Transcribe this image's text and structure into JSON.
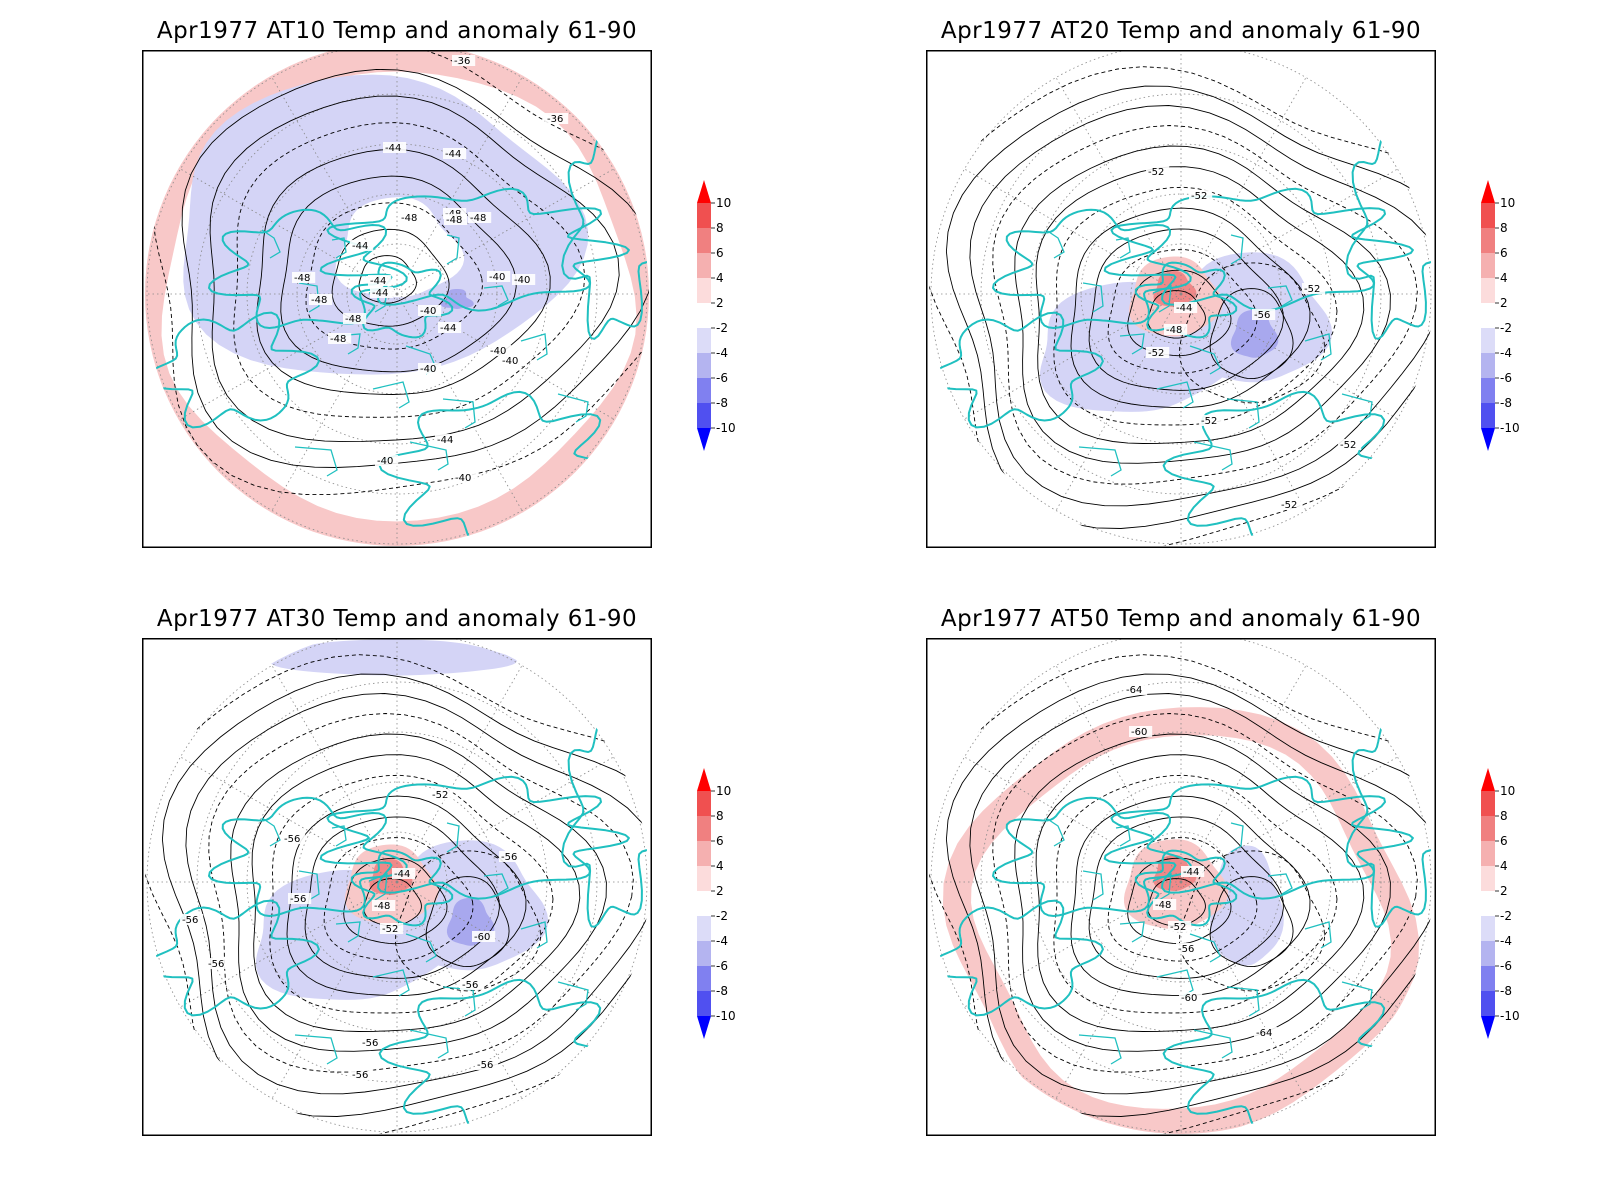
{
  "panels": [
    {
      "title": "Apr1977 AT10 Temp and anomaly 61-90",
      "labels": [
        "-36",
        "-36",
        "-44",
        "-44",
        "-48",
        "-48",
        "-44",
        "-48",
        "-44",
        "-48",
        "-48",
        "-48",
        "-44",
        "-40",
        "-40",
        "-48",
        "-44",
        "-48",
        "-40",
        "-40",
        "-40",
        "-40",
        "-44",
        "-40",
        "-40"
      ],
      "anomaly_type": "cold-ring"
    },
    {
      "title": "Apr1977 AT20 Temp and anomaly 61-90",
      "labels": [
        "-52",
        "-52",
        "-52",
        "-44",
        "-48",
        "-52",
        "-56",
        "-52",
        "-52",
        "-52"
      ],
      "anomaly_type": "warm-core"
    },
    {
      "title": "Apr1977 AT30 Temp and anomaly 61-90",
      "labels": [
        "-52",
        "-56",
        "-56",
        "-44",
        "-48",
        "-52",
        "-56",
        "-60",
        "-56",
        "-56",
        "-56",
        "-56",
        "-56",
        "-56"
      ],
      "anomaly_type": "warm-core"
    },
    {
      "title": "Apr1977 AT50 Temp and anomaly 61-90",
      "labels": [
        "-64",
        "-60",
        "-44",
        "-48",
        "-52",
        "-56",
        "-60",
        "-64"
      ],
      "anomaly_type": "warm-core-ring"
    }
  ],
  "colorbar": {
    "ticks": [
      "10",
      "8",
      "6",
      "4",
      "2",
      "-2",
      "-4",
      "-6",
      "-8",
      "-10"
    ],
    "colors": [
      "#ff0000",
      "#f05050",
      "#f08080",
      "#f5b0b0",
      "#fcdcdc",
      "#ffffff",
      "#dcdcf8",
      "#b4b4f0",
      "#8080f0",
      "#5050f0",
      "#0000ff"
    ]
  },
  "colors": {
    "coast": "#20c0c0",
    "warm": "#f8c8c8",
    "warm_strong": "#f08888",
    "cold": "#d4d4f6",
    "cold_strong": "#a8a8ee",
    "contour": "#000000",
    "grid": "#888888"
  }
}
